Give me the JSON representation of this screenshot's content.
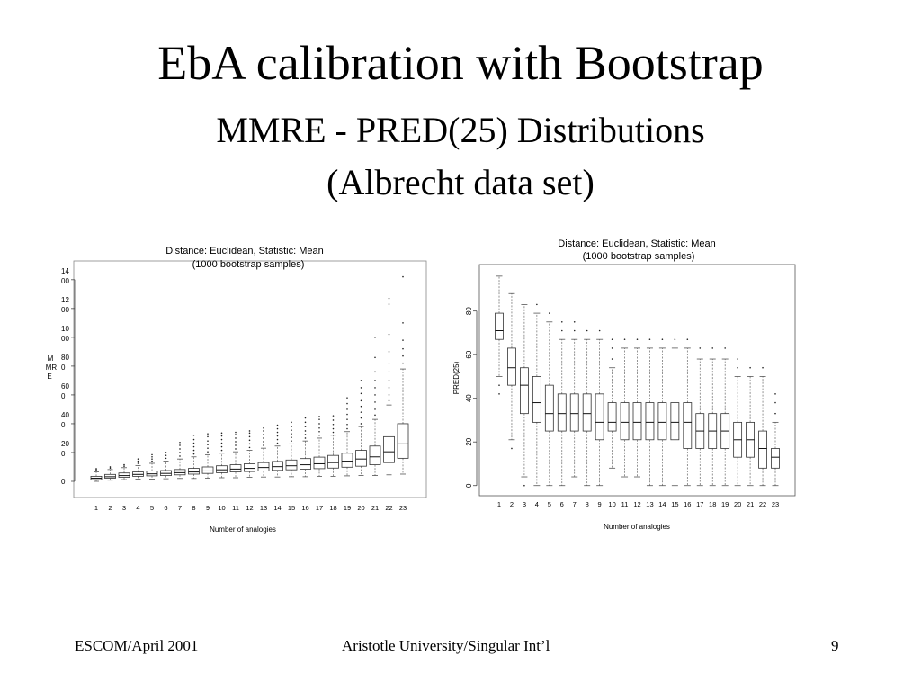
{
  "slide": {
    "title": "EbA calibration with Bootstrap",
    "subtitle_line1": "MMRE - PRED(25) Distributions",
    "subtitle_line2": "(Albrecht data set)",
    "footer_left": "ESCOM/April 2001",
    "footer_center": "Aristotle University/Singular Int’l",
    "page_number": "9"
  },
  "chart_data": [
    {
      "type": "boxplot",
      "title": "Distance: Euclidean, Statistic: Mean",
      "subtitle": "(1000 bootstrap samples)",
      "xlabel": "Number of analogies",
      "ylabel": "MMRE",
      "y_tick_labels": [
        "0",
        "20 0",
        "40 0",
        "60 0",
        "80 0",
        "10 00",
        "12 00",
        "14 00"
      ],
      "y_ticks": [
        0,
        200,
        400,
        600,
        800,
        1000,
        1200,
        1400
      ],
      "ylim": [
        -50,
        1480
      ],
      "categories": [
        "1",
        "2",
        "3",
        "4",
        "5",
        "6",
        "7",
        "8",
        "9",
        "10",
        "11",
        "12",
        "13",
        "14",
        "15",
        "16",
        "17",
        "18",
        "19",
        "20",
        "21",
        "22",
        "23"
      ],
      "boxes": [
        {
          "wlo": 0,
          "q1": 12,
          "med": 22,
          "q3": 35,
          "whi": 65,
          "outliers": [
            75,
            82,
            88
          ]
        },
        {
          "wlo": 8,
          "q1": 22,
          "med": 32,
          "q3": 48,
          "whi": 82,
          "outliers": [
            92,
            100
          ]
        },
        {
          "wlo": 12,
          "q1": 28,
          "med": 40,
          "q3": 58,
          "whi": 95,
          "outliers": [
            105,
            115
          ]
        },
        {
          "wlo": 15,
          "q1": 35,
          "med": 48,
          "q3": 65,
          "whi": 110,
          "outliers": [
            125,
            140,
            155
          ]
        },
        {
          "wlo": 15,
          "q1": 38,
          "med": 52,
          "q3": 72,
          "whi": 125,
          "outliers": [
            140,
            155,
            170,
            185
          ]
        },
        {
          "wlo": 18,
          "q1": 40,
          "med": 55,
          "q3": 75,
          "whi": 140,
          "outliers": [
            160,
            180,
            200
          ]
        },
        {
          "wlo": 20,
          "q1": 45,
          "med": 60,
          "q3": 82,
          "whi": 155,
          "outliers": [
            175,
            200,
            225,
            250,
            270
          ]
        },
        {
          "wlo": 20,
          "q1": 50,
          "med": 65,
          "q3": 90,
          "whi": 170,
          "outliers": [
            190,
            215,
            240,
            265,
            290,
            320
          ]
        },
        {
          "wlo": 22,
          "q1": 55,
          "med": 72,
          "q3": 100,
          "whi": 185,
          "outliers": [
            205,
            230,
            255,
            280,
            310,
            330
          ]
        },
        {
          "wlo": 25,
          "q1": 60,
          "med": 80,
          "q3": 108,
          "whi": 195,
          "outliers": [
            215,
            240,
            265,
            290,
            315,
            335
          ]
        },
        {
          "wlo": 25,
          "q1": 65,
          "med": 85,
          "q3": 115,
          "whi": 205,
          "outliers": [
            225,
            250,
            275,
            300,
            325,
            340
          ]
        },
        {
          "wlo": 28,
          "q1": 68,
          "med": 90,
          "q3": 122,
          "whi": 215,
          "outliers": [
            235,
            260,
            285,
            310,
            335,
            350
          ]
        },
        {
          "wlo": 30,
          "q1": 72,
          "med": 96,
          "q3": 130,
          "whi": 230,
          "outliers": [
            250,
            275,
            300,
            325,
            350,
            370
          ]
        },
        {
          "wlo": 30,
          "q1": 76,
          "med": 102,
          "q3": 138,
          "whi": 245,
          "outliers": [
            265,
            290,
            315,
            340,
            365,
            390
          ]
        },
        {
          "wlo": 32,
          "q1": 80,
          "med": 108,
          "q3": 148,
          "whi": 260,
          "outliers": [
            280,
            305,
            330,
            355,
            380,
            410
          ]
        },
        {
          "wlo": 32,
          "q1": 84,
          "med": 115,
          "q3": 158,
          "whi": 280,
          "outliers": [
            300,
            325,
            350,
            380,
            410,
            440
          ]
        },
        {
          "wlo": 35,
          "q1": 88,
          "med": 122,
          "q3": 168,
          "whi": 300,
          "outliers": [
            320,
            345,
            370,
            400,
            430,
            450
          ]
        },
        {
          "wlo": 35,
          "q1": 92,
          "med": 130,
          "q3": 180,
          "whi": 320,
          "outliers": [
            340,
            365,
            395,
            425,
            455
          ]
        },
        {
          "wlo": 38,
          "q1": 98,
          "med": 140,
          "q3": 195,
          "whi": 345,
          "outliers": [
            365,
            395,
            430,
            465,
            500,
            540,
            580
          ]
        },
        {
          "wlo": 40,
          "q1": 105,
          "med": 155,
          "q3": 215,
          "whi": 380,
          "outliers": [
            400,
            440,
            480,
            520,
            560,
            610,
            650,
            700
          ]
        },
        {
          "wlo": 40,
          "q1": 115,
          "med": 170,
          "q3": 245,
          "whi": 430,
          "outliers": [
            460,
            500,
            550,
            600,
            650,
            700,
            760,
            860,
            1000
          ]
        },
        {
          "wlo": 45,
          "q1": 130,
          "med": 205,
          "q3": 310,
          "whi": 530,
          "outliers": [
            560,
            600,
            650,
            700,
            760,
            820,
            900,
            1020,
            1230,
            1270
          ]
        },
        {
          "wlo": 50,
          "q1": 160,
          "med": 260,
          "q3": 400,
          "whi": 780,
          "outliers": [
            820,
            870,
            920,
            980,
            1100,
            1420
          ]
        }
      ]
    },
    {
      "type": "boxplot",
      "title": "Distance: Euclidean, Statistic: Mean",
      "subtitle": "(1000 bootstrap samples)",
      "xlabel": "Number of analogies",
      "ylabel": "PRED(25)",
      "y_tick_labels": [
        "0",
        "20",
        "40",
        "60",
        "80"
      ],
      "y_ticks": [
        0,
        20,
        40,
        60,
        80
      ],
      "ylim": [
        -3,
        98
      ],
      "categories": [
        "1",
        "2",
        "3",
        "4",
        "5",
        "6",
        "7",
        "8",
        "9",
        "10",
        "11",
        "12",
        "13",
        "14",
        "15",
        "16",
        "17",
        "18",
        "19",
        "20",
        "21",
        "22",
        "23"
      ],
      "boxes": [
        {
          "wlo": 50,
          "q1": 67,
          "med": 71,
          "q3": 79,
          "whi": 96,
          "outliers": [
            46,
            42
          ]
        },
        {
          "wlo": 21,
          "q1": 46,
          "med": 54,
          "q3": 63,
          "whi": 88,
          "outliers": [
            17
          ]
        },
        {
          "wlo": 4,
          "q1": 33,
          "med": 46,
          "q3": 54,
          "whi": 83,
          "outliers": [
            0
          ]
        },
        {
          "wlo": 0,
          "q1": 29,
          "med": 38,
          "q3": 50,
          "whi": 79,
          "outliers": [
            83
          ]
        },
        {
          "wlo": 0,
          "q1": 25,
          "med": 33,
          "q3": 46,
          "whi": 75,
          "outliers": [
            79
          ]
        },
        {
          "wlo": 0,
          "q1": 25,
          "med": 33,
          "q3": 42,
          "whi": 67,
          "outliers": [
            71,
            75
          ]
        },
        {
          "wlo": 4,
          "q1": 25,
          "med": 33,
          "q3": 42,
          "whi": 67,
          "outliers": [
            71,
            75
          ]
        },
        {
          "wlo": 0,
          "q1": 25,
          "med": 33,
          "q3": 42,
          "whi": 67,
          "outliers": [
            71
          ]
        },
        {
          "wlo": 0,
          "q1": 21,
          "med": 29,
          "q3": 42,
          "whi": 67,
          "outliers": [
            71
          ]
        },
        {
          "wlo": 8,
          "q1": 25,
          "med": 29,
          "q3": 38,
          "whi": 54,
          "outliers": [
            58,
            63,
            67
          ]
        },
        {
          "wlo": 4,
          "q1": 21,
          "med": 29,
          "q3": 38,
          "whi": 63,
          "outliers": [
            67
          ]
        },
        {
          "wlo": 4,
          "q1": 21,
          "med": 29,
          "q3": 38,
          "whi": 63,
          "outliers": [
            67
          ]
        },
        {
          "wlo": 0,
          "q1": 21,
          "med": 29,
          "q3": 38,
          "whi": 63,
          "outliers": [
            67
          ]
        },
        {
          "wlo": 0,
          "q1": 21,
          "med": 29,
          "q3": 38,
          "whi": 63,
          "outliers": [
            67
          ]
        },
        {
          "wlo": 0,
          "q1": 21,
          "med": 29,
          "q3": 38,
          "whi": 63,
          "outliers": [
            67
          ]
        },
        {
          "wlo": 0,
          "q1": 17,
          "med": 29,
          "q3": 38,
          "whi": 63,
          "outliers": [
            67
          ]
        },
        {
          "wlo": 0,
          "q1": 17,
          "med": 25,
          "q3": 33,
          "whi": 58,
          "outliers": [
            63
          ]
        },
        {
          "wlo": 0,
          "q1": 17,
          "med": 25,
          "q3": 33,
          "whi": 58,
          "outliers": [
            63
          ]
        },
        {
          "wlo": 0,
          "q1": 17,
          "med": 25,
          "q3": 33,
          "whi": 58,
          "outliers": [
            63
          ]
        },
        {
          "wlo": 0,
          "q1": 13,
          "med": 21,
          "q3": 29,
          "whi": 50,
          "outliers": [
            54,
            58
          ]
        },
        {
          "wlo": 0,
          "q1": 13,
          "med": 21,
          "q3": 29,
          "whi": 50,
          "outliers": [
            54
          ]
        },
        {
          "wlo": 0,
          "q1": 8,
          "med": 17,
          "q3": 25,
          "whi": 50,
          "outliers": [
            54
          ]
        },
        {
          "wlo": 0,
          "q1": 8,
          "med": 13,
          "q3": 17,
          "whi": 29,
          "outliers": [
            33,
            38,
            42
          ]
        }
      ]
    }
  ]
}
